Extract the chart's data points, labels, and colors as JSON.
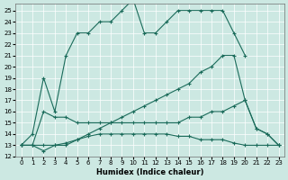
{
  "xlabel": "Humidex (Indice chaleur)",
  "bg_color": "#cce8e2",
  "grid_color": "#b8d8d0",
  "line_color": "#1a6b5a",
  "xlim": [
    -0.5,
    23.5
  ],
  "ylim": [
    12,
    25.6
  ],
  "xticks": [
    0,
    1,
    2,
    3,
    4,
    5,
    6,
    7,
    8,
    9,
    10,
    11,
    12,
    13,
    14,
    15,
    16,
    17,
    18,
    19,
    20,
    21,
    22,
    23
  ],
  "yticks": [
    12,
    13,
    14,
    15,
    16,
    17,
    18,
    19,
    20,
    21,
    22,
    23,
    24,
    25
  ],
  "series": [
    {
      "x": [
        0,
        1,
        2,
        3,
        4,
        5,
        6,
        7,
        8,
        9,
        10,
        11,
        12,
        13,
        14,
        15,
        16,
        17,
        18,
        19,
        20
      ],
      "y": [
        13,
        14,
        19,
        16,
        21,
        23,
        23,
        24,
        24,
        25,
        26,
        23,
        23,
        24,
        25,
        25,
        25,
        25,
        25,
        23,
        21
      ]
    },
    {
      "x": [
        0,
        1,
        2,
        3,
        4,
        5,
        6,
        7,
        8,
        9,
        10,
        11,
        12,
        13,
        14,
        15,
        16,
        17,
        18,
        19,
        20,
        21,
        22,
        23
      ],
      "y": [
        13,
        13,
        13,
        13,
        13,
        13.5,
        14,
        14.5,
        15,
        15.5,
        16,
        16.5,
        17,
        17.5,
        18,
        18.5,
        19.5,
        20,
        21,
        21,
        17,
        14.5,
        14,
        13
      ]
    },
    {
      "x": [
        0,
        1,
        2,
        3,
        4,
        5,
        6,
        7,
        8,
        9,
        10,
        11,
        12,
        13,
        14,
        15,
        16,
        17,
        18,
        19,
        20,
        21,
        22,
        23
      ],
      "y": [
        13,
        13,
        16,
        15.5,
        15.5,
        15,
        15,
        15,
        15,
        15,
        15,
        15,
        15,
        15,
        15,
        15.5,
        15.5,
        16,
        16,
        16.5,
        17,
        14.5,
        14,
        13
      ]
    },
    {
      "x": [
        0,
        1,
        2,
        3,
        4,
        5,
        6,
        7,
        8,
        9,
        10,
        11,
        12,
        13,
        14,
        15,
        16,
        17,
        18,
        19,
        20,
        21,
        22,
        23
      ],
      "y": [
        13,
        13,
        12.5,
        13,
        13.2,
        13.5,
        13.8,
        14,
        14,
        14,
        14,
        14,
        14,
        14,
        13.8,
        13.8,
        13.5,
        13.5,
        13.5,
        13.2,
        13,
        13,
        13,
        13
      ]
    }
  ]
}
